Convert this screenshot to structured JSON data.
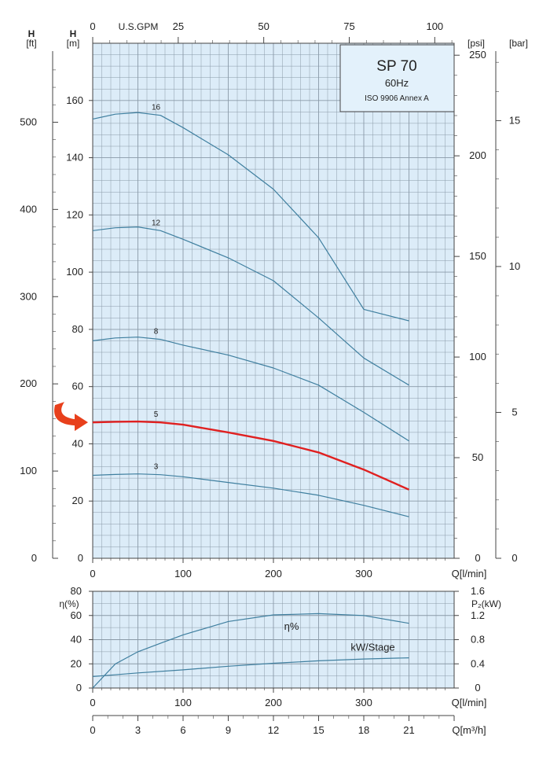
{
  "chart_data": [
    {
      "type": "line",
      "panel": "head",
      "title": "SP 70",
      "subtitle": "60Hz",
      "note": "ISO 9906 Annex A",
      "x_label": "Q[l/min]",
      "x_range": [
        0,
        400
      ],
      "x_ticks": [
        0,
        100,
        200,
        300
      ],
      "top_axis_label": "U.S.GPM",
      "top_axis_range": [
        0,
        105.67
      ],
      "top_axis_ticks": [
        0,
        25,
        50,
        75,
        100
      ],
      "y_label_m": "[m]",
      "y_label_m_head": "H",
      "y_range_m": [
        0,
        180
      ],
      "y_ticks_m": [
        20,
        40,
        60,
        80,
        100,
        120,
        140,
        160
      ],
      "y_label_ft": "[ft]",
      "y_label_ft_head": "H",
      "y_ticks_ft": [
        0,
        100,
        200,
        300,
        400,
        500
      ],
      "y_label_psi": "[psi]",
      "y_ticks_psi": [
        0,
        50,
        100,
        150,
        200,
        250
      ],
      "y_label_bar": "[bar]",
      "y_ticks_bar": [
        0,
        5,
        10,
        15
      ],
      "grid": true,
      "series": [
        {
          "name": "16",
          "color": "#3f7f9f",
          "x": [
            0,
            25,
            50,
            75,
            100,
            150,
            200,
            250,
            300,
            350
          ],
          "y": [
            153.5,
            155.2,
            155.8,
            154.8,
            150.5,
            141,
            129,
            112,
            87,
            83
          ]
        },
        {
          "name": "12",
          "color": "#3f7f9f",
          "x": [
            0,
            25,
            50,
            75,
            100,
            150,
            200,
            250,
            300,
            350
          ],
          "y": [
            114.5,
            115.5,
            115.8,
            114.5,
            111.5,
            105,
            97,
            84,
            70,
            60.5
          ]
        },
        {
          "name": "8",
          "color": "#3f7f9f",
          "x": [
            0,
            25,
            50,
            75,
            100,
            150,
            200,
            250,
            300,
            350
          ],
          "y": [
            76,
            77,
            77.3,
            76.5,
            74.5,
            71,
            66.5,
            60.5,
            51,
            41
          ]
        },
        {
          "name": "5",
          "color": "#e02020",
          "highlight": true,
          "x": [
            0,
            25,
            50,
            75,
            100,
            150,
            200,
            250,
            300,
            350
          ],
          "y": [
            47.5,
            47.7,
            47.8,
            47.5,
            46.7,
            44,
            41,
            37,
            31,
            24
          ]
        },
        {
          "name": "3",
          "color": "#3f7f9f",
          "x": [
            0,
            25,
            50,
            75,
            100,
            150,
            200,
            250,
            300,
            350
          ],
          "y": [
            29,
            29.3,
            29.5,
            29.2,
            28.5,
            26.5,
            24.5,
            22,
            18.5,
            14.5
          ]
        }
      ],
      "highlight_color": "#e8401c"
    },
    {
      "type": "line",
      "panel": "efficiency_power",
      "x_label": "Q[l/min]",
      "x_range": [
        0,
        400
      ],
      "x_ticks": [
        0,
        100,
        200,
        300
      ],
      "y_label_left": "η(%)",
      "y_range_left": [
        0,
        80
      ],
      "y_ticks_left": [
        0,
        20,
        40,
        60,
        80
      ],
      "y_label_right": "P₂(kW)",
      "y_range_right": [
        0,
        1.6
      ],
      "y_ticks_right": [
        "0",
        "0.4",
        "0.8",
        "1.2",
        "1.6"
      ],
      "grid": true,
      "series": [
        {
          "name": "η%",
          "axis": "left",
          "color": "#3f7f9f",
          "x": [
            0,
            25,
            50,
            75,
            100,
            150,
            200,
            250,
            300,
            350
          ],
          "y": [
            0,
            20,
            30,
            37,
            44,
            55,
            60.5,
            61.5,
            60,
            53.5
          ]
        },
        {
          "name": "kW/Stage",
          "axis": "right",
          "color": "#3f7f9f",
          "x": [
            0,
            50,
            100,
            150,
            200,
            250,
            300,
            350
          ],
          "y": [
            0.19,
            0.25,
            0.3,
            0.36,
            0.41,
            0.45,
            0.48,
            0.5
          ]
        }
      ]
    },
    {
      "type": "axis",
      "panel": "m3h_scale",
      "x_label": "Q[m³/h]",
      "x_range": [
        0,
        24
      ],
      "x_ticks": [
        0,
        3,
        6,
        9,
        12,
        15,
        18,
        21
      ]
    }
  ]
}
